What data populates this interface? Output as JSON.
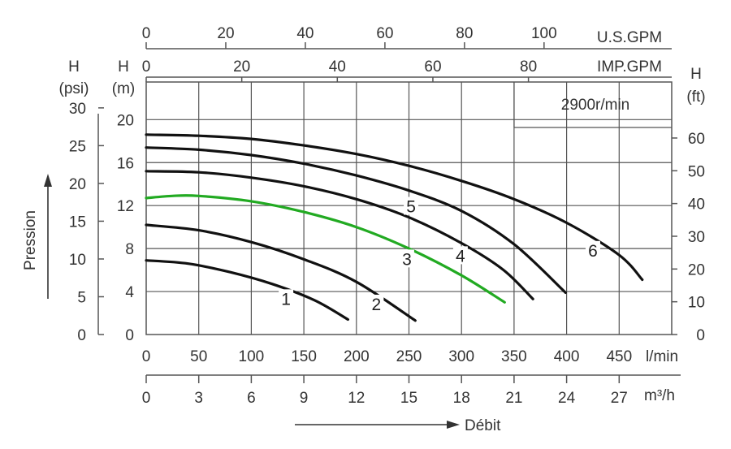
{
  "chart_data": {
    "type": "line",
    "annotation": "2900r/min",
    "xlabel": "Débit",
    "ylabel": "Pression",
    "flow_lmin": {
      "unit": "l/min",
      "range": [
        0,
        500
      ],
      "ticks": [
        0,
        50,
        100,
        150,
        200,
        250,
        300,
        350,
        400,
        450
      ]
    },
    "flow_m3h": {
      "unit": "m³/h",
      "ticks": [
        0,
        3,
        6,
        9,
        12,
        15,
        18,
        21,
        24,
        27
      ]
    },
    "flow_usgpm": {
      "unit": "U.S.GPM",
      "ticks": [
        0,
        20,
        40,
        60,
        80,
        100
      ]
    },
    "flow_impgpm": {
      "unit": "IMP.GPM",
      "ticks": [
        0,
        20,
        40,
        60,
        80
      ]
    },
    "head_m": {
      "h": "H",
      "unit": "(m)",
      "range": [
        0,
        23.5
      ],
      "ticks": [
        0,
        4,
        8,
        12,
        16,
        20
      ]
    },
    "head_psi": {
      "h": "H",
      "unit": "(psi)",
      "ticks": [
        0,
        5,
        10,
        15,
        20,
        25,
        30
      ]
    },
    "head_ft": {
      "h": "H",
      "unit": "(ft)",
      "ticks": [
        0,
        10,
        20,
        30,
        40,
        50,
        60
      ]
    },
    "series": [
      {
        "name": "1",
        "color": "#111111",
        "label_at": [
          133,
          3.3
        ],
        "x": [
          0,
          40,
          80,
          120,
          160,
          192
        ],
        "y": [
          6.9,
          6.6,
          5.8,
          4.7,
          3.2,
          1.4
        ]
      },
      {
        "name": "2",
        "color": "#111111",
        "label_at": [
          219,
          2.8
        ],
        "x": [
          0,
          50,
          100,
          150,
          200,
          256
        ],
        "y": [
          10.2,
          9.7,
          8.6,
          7.0,
          4.9,
          1.3
        ]
      },
      {
        "name": "3",
        "color": "#22aa22",
        "label_at": [
          248,
          7.0
        ],
        "x": [
          0,
          25,
          50,
          100,
          150,
          200,
          250,
          300,
          341
        ],
        "y": [
          12.7,
          12.9,
          12.9,
          12.4,
          11.4,
          10.0,
          8.0,
          5.5,
          3.0
        ]
      },
      {
        "name": "4",
        "color": "#111111",
        "label_at": [
          299,
          7.3
        ],
        "x": [
          0,
          50,
          100,
          150,
          200,
          250,
          300,
          340,
          368
        ],
        "y": [
          15.2,
          15.1,
          14.6,
          13.8,
          12.6,
          10.9,
          8.5,
          6.0,
          3.3
        ]
      },
      {
        "name": "5",
        "color": "#111111",
        "label_at": [
          252,
          11.9
        ],
        "x": [
          0,
          50,
          100,
          150,
          200,
          250,
          300,
          350,
          399
        ],
        "y": [
          17.4,
          17.2,
          16.7,
          15.9,
          14.8,
          13.4,
          11.5,
          8.4,
          3.9
        ]
      },
      {
        "name": "6",
        "color": "#111111",
        "label_at": [
          425,
          7.8
        ],
        "x": [
          0,
          50,
          100,
          150,
          200,
          250,
          300,
          350,
          400,
          450,
          472
        ],
        "y": [
          18.6,
          18.5,
          18.2,
          17.6,
          16.8,
          15.7,
          14.3,
          12.6,
          10.4,
          7.4,
          5.1
        ]
      }
    ]
  }
}
